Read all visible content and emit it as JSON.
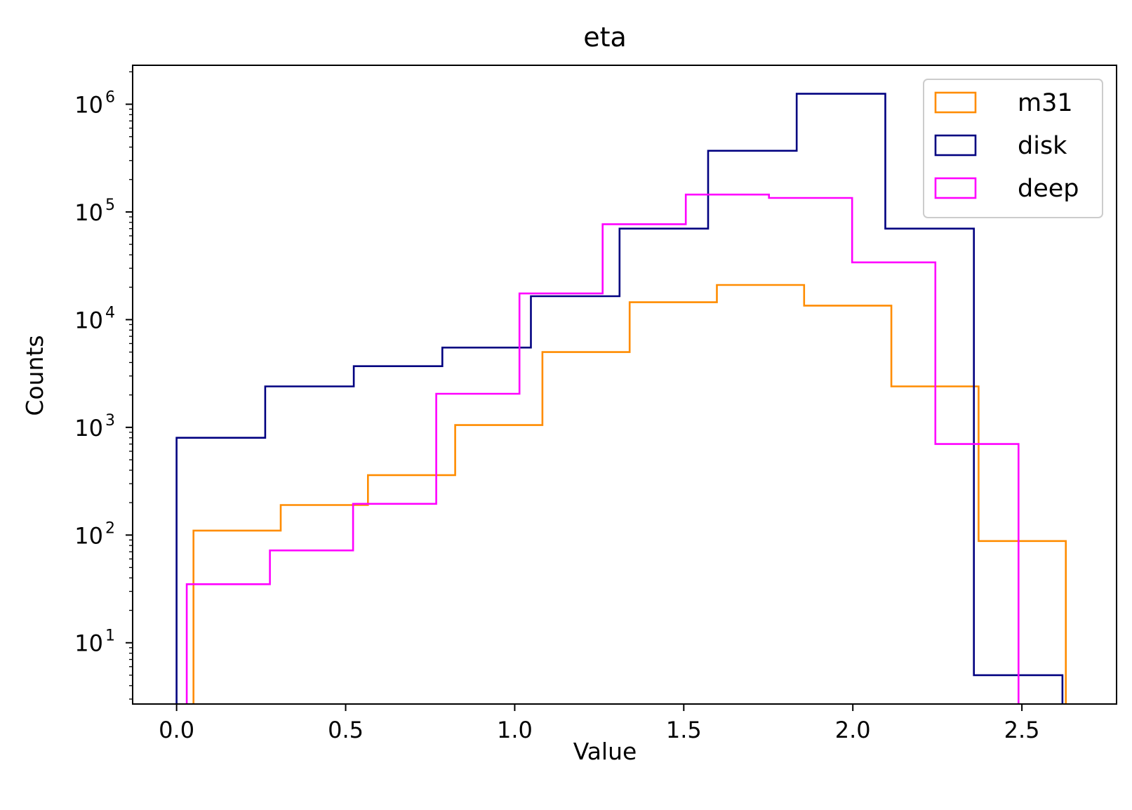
{
  "chart_data": {
    "type": "histogram-step",
    "title": "eta",
    "xlabel": "Value",
    "ylabel": "Counts",
    "xlim": [
      -0.13,
      2.78
    ],
    "ylim": [
      2.7,
      2300000
    ],
    "yscale": "log",
    "grid": false,
    "legend_position": "top-right",
    "x_ticks": [
      {
        "value": 0.0,
        "label": "0.0"
      },
      {
        "value": 0.5,
        "label": "0.5"
      },
      {
        "value": 1.0,
        "label": "1.0"
      },
      {
        "value": 1.5,
        "label": "1.5"
      },
      {
        "value": 2.0,
        "label": "2.0"
      },
      {
        "value": 2.5,
        "label": "2.5"
      }
    ],
    "y_ticks": [
      {
        "value": 10,
        "base": "10",
        "exp": "1"
      },
      {
        "value": 100,
        "base": "10",
        "exp": "2"
      },
      {
        "value": 1000,
        "base": "10",
        "exp": "3"
      },
      {
        "value": 10000,
        "base": "10",
        "exp": "4"
      },
      {
        "value": 100000,
        "base": "10",
        "exp": "5"
      },
      {
        "value": 1000000,
        "base": "10",
        "exp": "6"
      }
    ],
    "series": [
      {
        "name": "m31",
        "color": "#ff8c00",
        "edges": [
          0.05,
          0.308,
          0.566,
          0.824,
          1.082,
          1.34,
          1.598,
          1.856,
          2.114,
          2.372,
          2.63
        ],
        "counts": [
          110,
          190,
          360,
          1050,
          5000,
          14500,
          21000,
          13500,
          2400,
          88
        ]
      },
      {
        "name": "disk",
        "color": "#000080",
        "edges": [
          0.0,
          0.262,
          0.524,
          0.786,
          1.048,
          1.31,
          1.572,
          1.834,
          2.096,
          2.358,
          2.62
        ],
        "counts": [
          800,
          2400,
          3700,
          5500,
          16500,
          70000,
          370000,
          1250000,
          70000,
          5
        ]
      },
      {
        "name": "deep",
        "color": "#ff00ff",
        "edges": [
          0.03,
          0.276,
          0.522,
          0.768,
          1.014,
          1.26,
          1.506,
          1.752,
          1.998,
          2.244,
          2.49
        ],
        "counts": [
          35,
          72,
          195,
          2050,
          17500,
          77000,
          145000,
          135000,
          34000,
          700
        ]
      }
    ]
  }
}
